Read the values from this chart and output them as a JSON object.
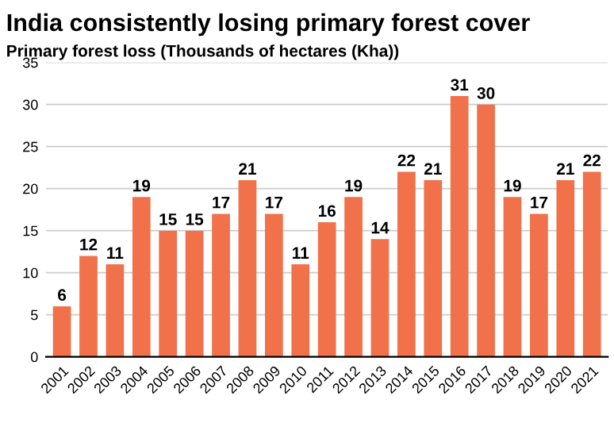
{
  "chart_data": {
    "type": "bar",
    "title": "India consistently losing primary forest cover",
    "ylabel": "Primary forest loss (Thousands of hectares (Kha))",
    "categories": [
      "2001",
      "2002",
      "2003",
      "2004",
      "2005",
      "2006",
      "2007",
      "2008",
      "2009",
      "2010",
      "2011",
      "2012",
      "2013",
      "2014",
      "2015",
      "2016",
      "2017",
      "2018",
      "2019",
      "2020",
      "2021"
    ],
    "values": [
      6,
      12,
      11,
      19,
      15,
      15,
      17,
      21,
      17,
      11,
      16,
      19,
      14,
      22,
      21,
      31,
      30,
      19,
      17,
      21,
      22
    ],
    "color": "#f0714a",
    "ylim": [
      0,
      35
    ],
    "yticks": [
      0,
      5,
      10,
      15,
      20,
      25,
      30,
      35
    ],
    "grid": "y",
    "data_labels": true
  }
}
